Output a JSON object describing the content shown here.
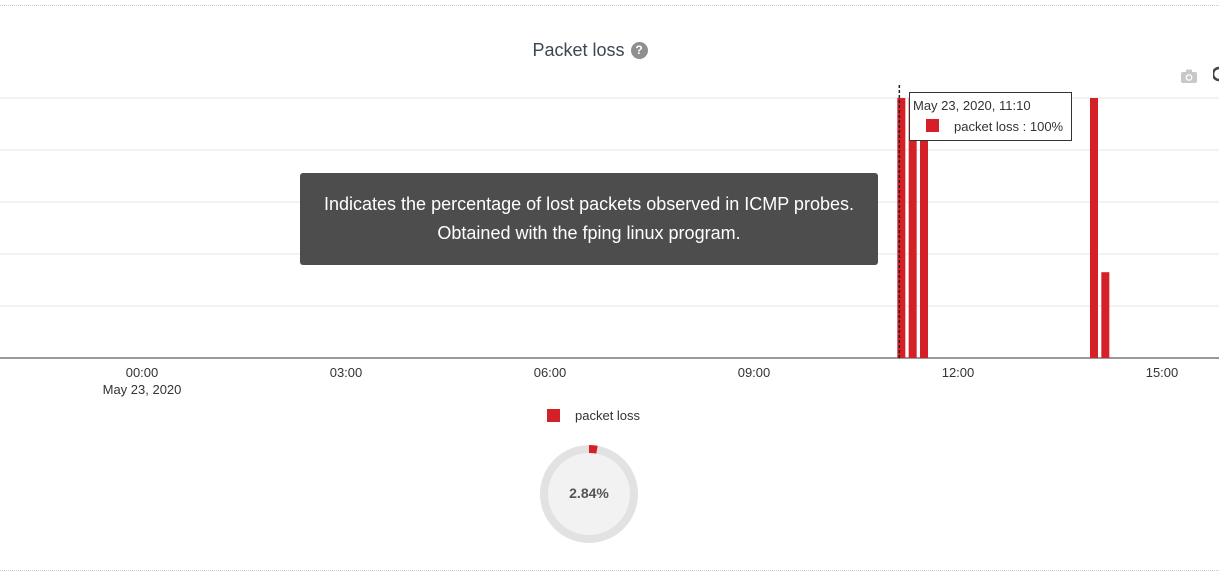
{
  "chart_title": "Packet loss",
  "help_text_line1": "Indicates the percentage of lost packets observed in ICMP probes.",
  "help_text_line2": "Obtained with the fping linux program.",
  "icons": {
    "help": "question-circle-icon",
    "camera": "camera-icon"
  },
  "tooltip": {
    "date": "May 23, 2020, 11:10",
    "row": "packet loss : 100%"
  },
  "legend": {
    "label": "packet loss",
    "color": "#d42026"
  },
  "gauge": {
    "text": "2.84%",
    "value_percent": 2.84
  },
  "chart_data": {
    "type": "bar",
    "x_ticks": [
      "00:00",
      "03:00",
      "06:00",
      "09:00",
      "12:00",
      "15:00"
    ],
    "x_tick_sublabel": "May 23, 2020",
    "series": [
      {
        "name": "packet loss",
        "color": "#d42026",
        "points": [
          {
            "time": "11:10",
            "value": 100
          },
          {
            "time": "11:20",
            "value": 100
          },
          {
            "time": "11:30",
            "value": 100
          },
          {
            "time": "14:00",
            "value": 100
          },
          {
            "time": "14:10",
            "value": 33
          }
        ]
      }
    ],
    "ylim": [
      0,
      100
    ],
    "grid": true,
    "hover_time": "11:10"
  }
}
